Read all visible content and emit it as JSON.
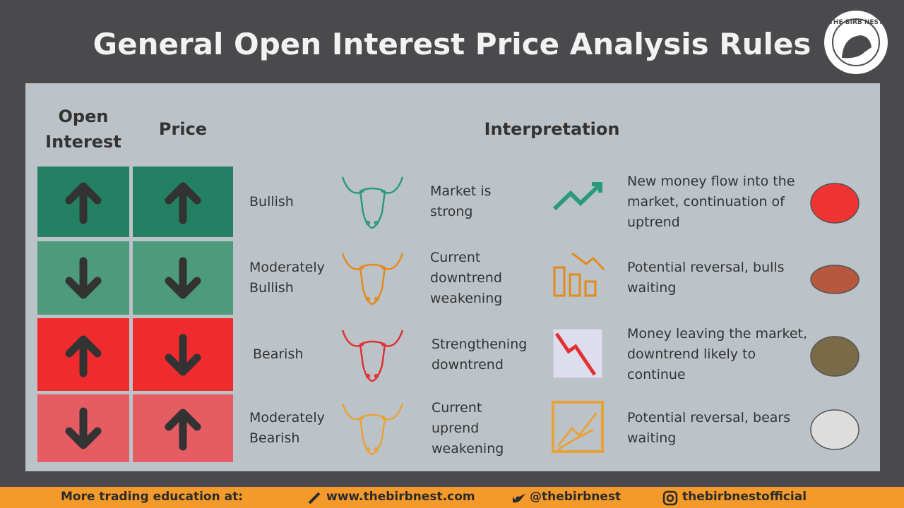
{
  "header": {
    "title": "General Open Interest Price Analysis Rules",
    "logo": "THE BIRB NEST"
  },
  "table": {
    "columns": [
      "Open Interest",
      "Price",
      "Interpretation"
    ],
    "rows": [
      {
        "sentiment": "Bullish",
        "condition": "Market is strong",
        "interpretation": "New money flow into the market, continuation of uptrend"
      },
      {
        "sentiment": "Moderately Bullish",
        "condition": "Current downtrend weakening",
        "interpretation": "Potential reversal, bulls waiting"
      },
      {
        "sentiment": "Bearish",
        "condition": "Strengthening downtrend",
        "interpretation": "Money leaving the market, downtrend likely to continue"
      },
      {
        "sentiment": "Moderately Bearish",
        "condition": "Current uprend weakening",
        "interpretation": "Potential reversal, bears waiting"
      }
    ]
  },
  "footer": {
    "label": "More trading education at:",
    "website": "www.thebirbnest.com",
    "twitter": "@thebirbnest",
    "instagram": "thebirbnestofficial"
  }
}
